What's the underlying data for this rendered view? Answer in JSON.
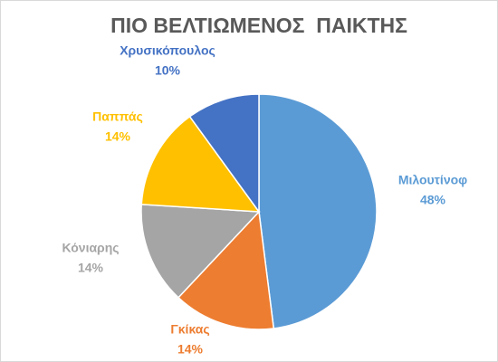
{
  "chart_data": {
    "type": "pie",
    "title": "ΠΙΟ ΒΕΛΤΙΩΜΕΝΟΣ  ΠΑΙΚΤΗΣ",
    "categories": [
      "Μιλουτίνοφ",
      "Γκίκας",
      "Κόνιαρης",
      "Παππάς",
      "Χρυσικόπουλος"
    ],
    "values": [
      48,
      14,
      14,
      14,
      10
    ],
    "value_labels": [
      "48%",
      "14%",
      "14%",
      "14%",
      "10%"
    ],
    "colors": [
      "#5b9bd5",
      "#ed7d31",
      "#a5a5a5",
      "#ffc000",
      "#4472c4"
    ]
  }
}
